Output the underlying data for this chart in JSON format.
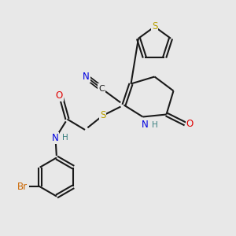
{
  "background_color": "#e8e8e8",
  "bond_color": "#1a1a1a",
  "colors": {
    "S": "#b8a000",
    "N": "#0000e0",
    "O": "#e00000",
    "Br": "#cc6600",
    "C": "#1a1a1a",
    "H": "#3a8080"
  },
  "figsize": [
    3.0,
    3.0
  ],
  "dpi": 100
}
